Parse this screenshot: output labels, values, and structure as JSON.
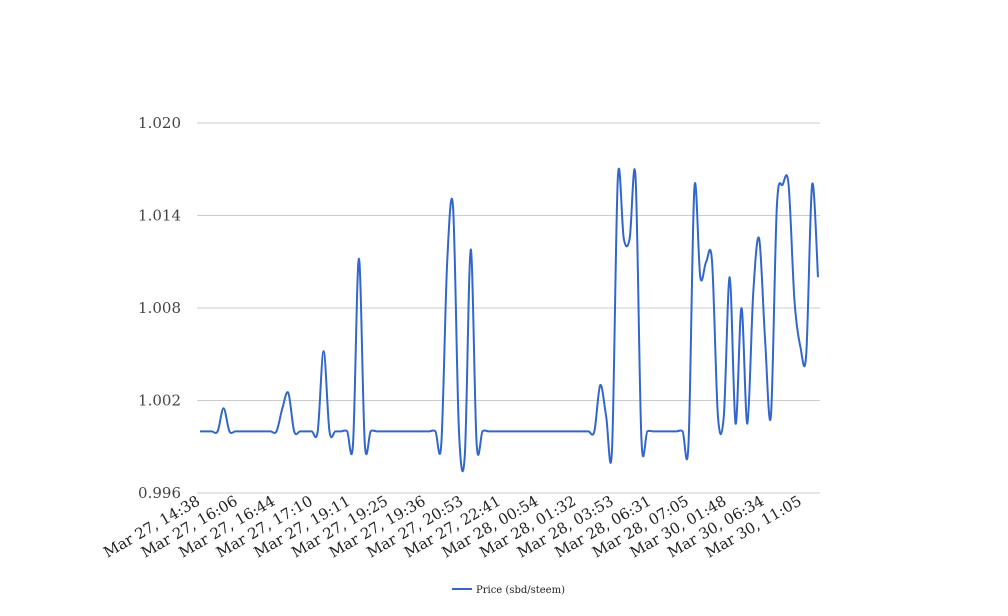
{
  "chart_data": {
    "type": "line",
    "title": "",
    "xlabel": "",
    "ylabel": "",
    "ylim": [
      0.996,
      1.02
    ],
    "y_ticks": [
      "0.996",
      "1.002",
      "1.008",
      "1.014",
      "1.020"
    ],
    "grid": true,
    "legend_position": "bottom",
    "x_tick_labels": [
      "Mar 27, 14:38",
      "Mar 27, 16:06",
      "Mar 27, 16:44",
      "Mar 27, 17:10",
      "Mar 27, 19:11",
      "Mar 27, 19:25",
      "Mar 27, 19:36",
      "Mar 27, 20:53",
      "Mar 27, 22:41",
      "Mar 28, 00:54",
      "Mar 28, 01:32",
      "Mar 28, 03:53",
      "Mar 28, 06:31",
      "Mar 28, 07:05",
      "Mar 30, 01:48",
      "Mar 30, 06:34",
      "Mar 30, 11:05"
    ],
    "series": [
      {
        "name": "Price (sbd/steem)",
        "color": "#3366cc",
        "values": [
          1.0,
          1.0,
          1.0,
          1.0,
          1.0015,
          1.0,
          1.0,
          1.0,
          1.0,
          1.0,
          1.0,
          1.0,
          1.0,
          1.0,
          1.0015,
          1.0025,
          1.0,
          1.0,
          1.0,
          1.0,
          1.0,
          1.0052,
          1.0,
          1.0,
          1.0,
          1.0,
          0.9992,
          1.0112,
          0.9992,
          1.0,
          1.0,
          1.0,
          1.0,
          1.0,
          1.0,
          1.0,
          1.0,
          1.0,
          1.0,
          1.0,
          1.0,
          0.9992,
          1.011,
          1.0145,
          1.0,
          0.9985,
          1.0118,
          0.9992,
          1.0,
          1.0,
          1.0,
          1.0,
          1.0,
          1.0,
          1.0,
          1.0,
          1.0,
          1.0,
          1.0,
          1.0,
          1.0,
          1.0,
          1.0,
          1.0,
          1.0,
          1.0,
          1.0,
          1.0,
          1.003,
          1.001,
          0.9988,
          1.0165,
          1.0125,
          1.0125,
          1.0165,
          0.9995,
          1.0,
          1.0,
          1.0,
          1.0,
          1.0,
          1.0,
          1.0,
          0.9992,
          1.0158,
          1.01,
          1.011,
          1.011,
          1.001,
          1.001,
          1.01,
          1.0005,
          1.008,
          1.0005,
          1.009,
          1.0125,
          1.006,
          1.001,
          1.0145,
          1.016,
          1.016,
          1.0085,
          1.0055,
          1.005,
          1.016,
          1.01
        ]
      }
    ]
  }
}
